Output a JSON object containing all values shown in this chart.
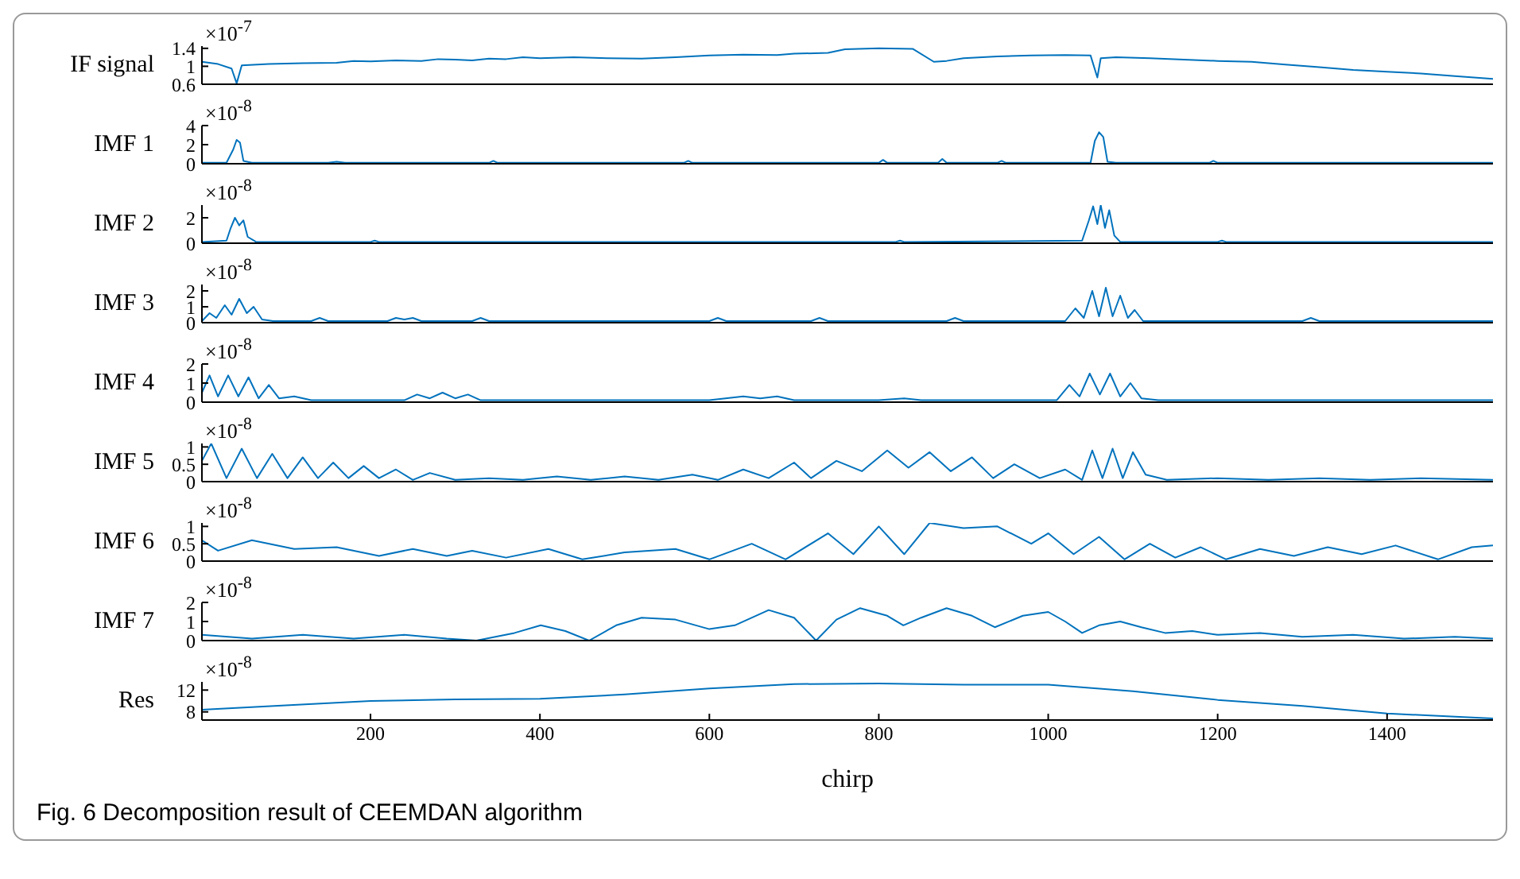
{
  "chart_data": [
    {
      "type": "line",
      "ylabel": "IF signal",
      "color": "#0072bd",
      "xlim": [
        1,
        1525
      ],
      "ylim": [
        0.6,
        1.45
      ],
      "yticks": [
        0.6,
        1,
        1.4
      ],
      "tick_labels": "y",
      "annotations": [
        "×10$^{-7}$"
      ],
      "x": [
        1,
        20,
        36,
        42,
        48,
        80,
        120,
        160,
        180,
        200,
        230,
        260,
        280,
        300,
        320,
        340,
        360,
        380,
        400,
        440,
        480,
        520,
        560,
        600,
        640,
        680,
        700,
        740,
        760,
        800,
        840,
        865,
        880,
        900,
        940,
        980,
        1020,
        1050,
        1058,
        1062,
        1080,
        1120,
        1160,
        1200,
        1240,
        1280,
        1320,
        1360,
        1400,
        1440,
        1480,
        1525
      ],
      "values": [
        1.1,
        1.05,
        0.95,
        0.62,
        1.02,
        1.05,
        1.07,
        1.08,
        1.12,
        1.11,
        1.13,
        1.12,
        1.16,
        1.15,
        1.13,
        1.17,
        1.16,
        1.2,
        1.18,
        1.2,
        1.18,
        1.17,
        1.2,
        1.24,
        1.26,
        1.25,
        1.28,
        1.3,
        1.38,
        1.4,
        1.39,
        1.1,
        1.12,
        1.18,
        1.22,
        1.24,
        1.25,
        1.24,
        0.75,
        1.18,
        1.2,
        1.18,
        1.15,
        1.12,
        1.1,
        1.04,
        0.98,
        0.92,
        0.88,
        0.84,
        0.78,
        0.72
      ]
    },
    {
      "type": "line",
      "ylabel": "IMF 1",
      "color": "#0072bd",
      "xlim": [
        1,
        1525
      ],
      "ylim": [
        0,
        4
      ],
      "yticks": [
        0,
        2,
        4
      ],
      "tick_labels": "y",
      "annotations": [
        "×10$^{-8}$"
      ],
      "x": [
        1,
        30,
        38,
        42,
        46,
        50,
        60,
        150,
        160,
        170,
        340,
        345,
        350,
        570,
        575,
        580,
        800,
        805,
        810,
        870,
        875,
        880,
        940,
        945,
        950,
        1050,
        1055,
        1060,
        1065,
        1070,
        1080,
        1190,
        1195,
        1200,
        1525
      ],
      "values": [
        0.1,
        0.1,
        1.5,
        2.5,
        2.2,
        0.3,
        0.1,
        0.1,
        0.2,
        0.1,
        0.1,
        0.3,
        0.1,
        0.1,
        0.3,
        0.1,
        0.1,
        0.4,
        0.1,
        0.1,
        0.5,
        0.1,
        0.1,
        0.3,
        0.1,
        0.1,
        2.4,
        3.3,
        2.8,
        0.2,
        0.1,
        0.1,
        0.3,
        0.1,
        0.1
      ]
    },
    {
      "type": "line",
      "ylabel": "IMF 2",
      "color": "#0072bd",
      "xlim": [
        1,
        1525
      ],
      "ylim": [
        0,
        3
      ],
      "yticks": [
        0,
        2
      ],
      "tick_labels": "y",
      "annotations": [
        "×10$^{-8}$"
      ],
      "x": [
        1,
        30,
        35,
        40,
        45,
        50,
        55,
        65,
        200,
        205,
        210,
        820,
        825,
        830,
        1040,
        1048,
        1053,
        1058,
        1062,
        1067,
        1072,
        1078,
        1085,
        1200,
        1205,
        1210,
        1525
      ],
      "values": [
        0.1,
        0.2,
        1.2,
        2.0,
        1.4,
        1.8,
        0.5,
        0.1,
        0.1,
        0.2,
        0.1,
        0.1,
        0.2,
        0.1,
        0.2,
        1.8,
        2.9,
        1.5,
        3.0,
        1.2,
        2.6,
        0.6,
        0.1,
        0.1,
        0.2,
        0.1,
        0.1
      ]
    },
    {
      "type": "line",
      "ylabel": "IMF 3",
      "color": "#0072bd",
      "xlim": [
        1,
        1525
      ],
      "ylim": [
        0,
        2.4
      ],
      "yticks": [
        0,
        1,
        2
      ],
      "tick_labels": "y",
      "annotations": [
        "×10$^{-8}$"
      ],
      "x": [
        1,
        10,
        18,
        28,
        36,
        45,
        54,
        62,
        72,
        85,
        130,
        140,
        150,
        220,
        230,
        240,
        250,
        260,
        320,
        330,
        340,
        600,
        610,
        620,
        720,
        730,
        740,
        880,
        890,
        900,
        1020,
        1032,
        1042,
        1052,
        1060,
        1068,
        1076,
        1085,
        1094,
        1102,
        1112,
        1300,
        1310,
        1320,
        1525
      ],
      "values": [
        0.1,
        0.6,
        0.3,
        1.1,
        0.5,
        1.5,
        0.6,
        1.0,
        0.2,
        0.1,
        0.1,
        0.3,
        0.1,
        0.1,
        0.3,
        0.2,
        0.3,
        0.1,
        0.1,
        0.3,
        0.1,
        0.1,
        0.3,
        0.1,
        0.1,
        0.3,
        0.1,
        0.1,
        0.3,
        0.1,
        0.1,
        0.9,
        0.3,
        2.0,
        0.4,
        2.2,
        0.4,
        1.7,
        0.3,
        0.8,
        0.1,
        0.1,
        0.3,
        0.1,
        0.1
      ]
    },
    {
      "type": "line",
      "ylabel": "IMF 4",
      "color": "#0072bd",
      "xlim": [
        1,
        1525
      ],
      "ylim": [
        0,
        2
      ],
      "yticks": [
        0,
        1,
        2
      ],
      "tick_labels": "y",
      "annotations": [
        "×10$^{-8}$"
      ],
      "x": [
        1,
        10,
        20,
        32,
        44,
        56,
        68,
        80,
        92,
        110,
        130,
        240,
        255,
        270,
        285,
        300,
        315,
        330,
        600,
        640,
        660,
        680,
        700,
        800,
        830,
        850,
        1010,
        1025,
        1037,
        1049,
        1061,
        1073,
        1085,
        1097,
        1110,
        1130,
        1525
      ],
      "values": [
        0.5,
        1.4,
        0.3,
        1.4,
        0.3,
        1.3,
        0.2,
        0.9,
        0.2,
        0.3,
        0.1,
        0.1,
        0.4,
        0.2,
        0.5,
        0.2,
        0.4,
        0.1,
        0.1,
        0.3,
        0.2,
        0.3,
        0.1,
        0.1,
        0.2,
        0.1,
        0.1,
        0.9,
        0.3,
        1.5,
        0.4,
        1.5,
        0.3,
        1.0,
        0.2,
        0.1,
        0.1
      ]
    },
    {
      "type": "line",
      "ylabel": "IMF 5",
      "color": "#0072bd",
      "xlim": [
        1,
        1525
      ],
      "ylim": [
        0,
        1.1
      ],
      "yticks": [
        0,
        0.5,
        1
      ],
      "tick_labels": "y",
      "annotations": [
        "×10$^{-8}$"
      ],
      "x": [
        1,
        12,
        30,
        48,
        66,
        84,
        102,
        120,
        138,
        156,
        174,
        192,
        210,
        230,
        250,
        270,
        300,
        340,
        380,
        420,
        460,
        500,
        540,
        580,
        610,
        640,
        670,
        700,
        720,
        750,
        780,
        810,
        835,
        860,
        885,
        910,
        935,
        960,
        990,
        1020,
        1040,
        1052,
        1064,
        1076,
        1088,
        1100,
        1115,
        1140,
        1200,
        1260,
        1320,
        1380,
        1440,
        1525
      ],
      "values": [
        0.6,
        1.1,
        0.1,
        0.95,
        0.1,
        0.8,
        0.1,
        0.7,
        0.1,
        0.55,
        0.1,
        0.45,
        0.1,
        0.35,
        0.05,
        0.25,
        0.05,
        0.1,
        0.05,
        0.15,
        0.05,
        0.15,
        0.05,
        0.2,
        0.05,
        0.35,
        0.1,
        0.55,
        0.1,
        0.6,
        0.3,
        0.9,
        0.4,
        0.85,
        0.3,
        0.7,
        0.1,
        0.5,
        0.1,
        0.35,
        0.05,
        0.9,
        0.1,
        0.95,
        0.1,
        0.85,
        0.2,
        0.05,
        0.1,
        0.05,
        0.1,
        0.05,
        0.1,
        0.05
      ]
    },
    {
      "type": "line",
      "ylabel": "IMF 6",
      "color": "#0072bd",
      "xlim": [
        1,
        1525
      ],
      "ylim": [
        0,
        1.1
      ],
      "yticks": [
        0,
        0.5,
        1
      ],
      "tick_labels": "y",
      "annotations": [
        "×10$^{-8}$"
      ],
      "x": [
        1,
        20,
        60,
        110,
        160,
        210,
        250,
        290,
        320,
        360,
        410,
        450,
        500,
        560,
        600,
        650,
        690,
        740,
        770,
        800,
        830,
        860,
        900,
        940,
        980,
        1000,
        1030,
        1060,
        1090,
        1120,
        1150,
        1180,
        1210,
        1250,
        1290,
        1330,
        1370,
        1410,
        1460,
        1500,
        1525
      ],
      "values": [
        0.6,
        0.3,
        0.6,
        0.35,
        0.4,
        0.15,
        0.35,
        0.15,
        0.3,
        0.1,
        0.35,
        0.05,
        0.25,
        0.35,
        0.05,
        0.5,
        0.05,
        0.8,
        0.2,
        1.0,
        0.2,
        1.1,
        0.95,
        1.0,
        0.5,
        0.8,
        0.2,
        0.7,
        0.05,
        0.5,
        0.1,
        0.4,
        0.05,
        0.35,
        0.15,
        0.4,
        0.2,
        0.45,
        0.05,
        0.4,
        0.45
      ]
    },
    {
      "type": "line",
      "ylabel": "IMF 7",
      "color": "#0072bd",
      "xlim": [
        1,
        1525
      ],
      "ylim": [
        0,
        2
      ],
      "yticks": [
        0,
        1,
        2
      ],
      "tick_labels": "y",
      "annotations": [
        "×10$^{-8}$"
      ],
      "x": [
        1,
        60,
        120,
        180,
        240,
        290,
        325,
        370,
        401,
        430,
        458,
        490,
        520,
        560,
        600,
        630,
        670,
        700,
        726,
        750,
        778,
        810,
        829,
        850,
        880,
        910,
        937,
        970,
        1000,
        1020,
        1040,
        1060,
        1085,
        1110,
        1138,
        1170,
        1200,
        1250,
        1300,
        1360,
        1420,
        1480,
        1525
      ],
      "values": [
        0.3,
        0.1,
        0.3,
        0.1,
        0.3,
        0.1,
        0.0,
        0.4,
        0.8,
        0.5,
        0.0,
        0.8,
        1.2,
        1.1,
        0.6,
        0.8,
        1.6,
        1.2,
        0.0,
        1.1,
        1.7,
        1.3,
        0.8,
        1.2,
        1.7,
        1.3,
        0.7,
        1.3,
        1.5,
        1.0,
        0.4,
        0.8,
        1.0,
        0.7,
        0.4,
        0.5,
        0.3,
        0.4,
        0.2,
        0.3,
        0.1,
        0.2,
        0.1
      ]
    },
    {
      "type": "line",
      "ylabel": "Res",
      "xlabel": "chirp",
      "color": "#0072bd",
      "xlim": [
        1,
        1525
      ],
      "xticks": [
        200,
        400,
        600,
        800,
        1000,
        1200,
        1400
      ],
      "ylim": [
        6.5,
        13.5
      ],
      "yticks": [
        8,
        12
      ],
      "annotations": [
        "×10$^{-8}$",
        "Fig. 6 Decomposition result of CEEMDAN algorithm"
      ],
      "x": [
        1,
        100,
        200,
        300,
        400,
        500,
        600,
        700,
        800,
        900,
        1000,
        1100,
        1200,
        1300,
        1400,
        1525
      ],
      "values": [
        8.4,
        9.2,
        10,
        10.3,
        10.4,
        11.2,
        12.3,
        13.1,
        13.2,
        13.0,
        13.0,
        11.8,
        10.2,
        9.1,
        7.7,
        6.8
      ]
    }
  ]
}
